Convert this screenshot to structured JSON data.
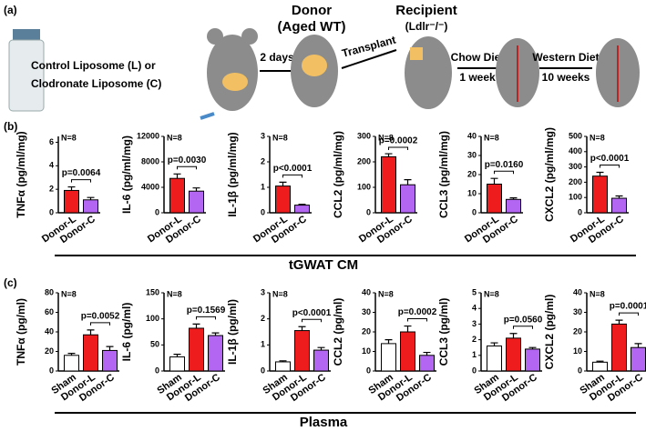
{
  "schematic": {
    "panel": "(a)",
    "vial_line1": "Control Liposome (L) or",
    "vial_line2": "Clodronate Liposome  (C)",
    "donor": "Donor",
    "donor_sub": "(Aged WT)",
    "step1": "2 days",
    "step2": "Transplant",
    "recipient": "Recipient",
    "recipient_sub": "(Ldlr⁻/⁻)",
    "diet1": "Chow Diet",
    "diet1_time": "1 week",
    "diet2": "Western Diet",
    "diet2_time": "10 weeks"
  },
  "panels": {
    "b": "(b)",
    "c": "(c)",
    "b_section": "tGWAT CM",
    "c_section": "Plasma"
  },
  "chart_data": [
    {
      "type": "bar",
      "y_label": "TNFα (pg/ml/mg)",
      "categories": [
        "Donor-L",
        "Donor-C"
      ],
      "values": [
        1.9,
        1.1
      ],
      "errors": [
        0.3,
        0.2
      ],
      "colors": [
        "#ee1c1c",
        "#b366f2"
      ],
      "ylim": [
        0,
        6.5
      ],
      "yticks": [
        0,
        2,
        4,
        6
      ],
      "n_label": "N=8",
      "p_label": "p=0.0064"
    },
    {
      "type": "bar",
      "y_label": "IL-6 (pg/ml/mg)",
      "categories": [
        "Donor-L",
        "Donor-C"
      ],
      "values": [
        5400,
        3400
      ],
      "errors": [
        700,
        500
      ],
      "colors": [
        "#ee1c1c",
        "#b366f2"
      ],
      "ylim": [
        0,
        12000
      ],
      "yticks": [
        0,
        4000,
        8000,
        12000
      ],
      "n_label": "N=8",
      "p_label": "p=0.0030"
    },
    {
      "type": "bar",
      "y_label": "IL-1β (pg/ml/mg)",
      "categories": [
        "Donor-L",
        "Donor-C"
      ],
      "values": [
        1.05,
        0.3
      ],
      "errors": [
        0.15,
        0.03
      ],
      "colors": [
        "#ee1c1c",
        "#b366f2"
      ],
      "ylim": [
        0,
        3
      ],
      "yticks": [
        0,
        1,
        2,
        3
      ],
      "n_label": "N=8",
      "p_label": "p<0.0001"
    },
    {
      "type": "bar",
      "y_label": "CCL2 (pg/ml/mg)",
      "categories": [
        "Donor-L",
        "Donor-C"
      ],
      "values": [
        220,
        110
      ],
      "errors": [
        12,
        20
      ],
      "colors": [
        "#ee1c1c",
        "#b366f2"
      ],
      "ylim": [
        0,
        300
      ],
      "yticks": [
        0,
        100,
        200,
        300
      ],
      "n_label": "N=8",
      "p_label": "p=0.0002"
    },
    {
      "type": "bar",
      "y_label": "CCL3 (pg/ml/mg)",
      "categories": [
        "Donor-L",
        "Donor-C"
      ],
      "values": [
        15,
        7
      ],
      "errors": [
        3,
        0.8
      ],
      "colors": [
        "#ee1c1c",
        "#b366f2"
      ],
      "ylim": [
        0,
        40
      ],
      "yticks": [
        0,
        10,
        20,
        30,
        40
      ],
      "n_label": "N=8",
      "p_label": "p=0.0160"
    },
    {
      "type": "bar",
      "y_label": "CXCL2 (pg/ml/mg)",
      "categories": [
        "Donor-L",
        "Donor-C"
      ],
      "values": [
        240,
        95
      ],
      "errors": [
        25,
        15
      ],
      "colors": [
        "#ee1c1c",
        "#b366f2"
      ],
      "ylim": [
        0,
        500
      ],
      "yticks": [
        0,
        100,
        200,
        300,
        400,
        500
      ],
      "n_label": "N=8",
      "p_label": "p<0.0001"
    },
    {
      "type": "bar",
      "y_label": "TNFα (pg/ml)",
      "categories": [
        "Sham",
        "Donor-L",
        "Donor-C"
      ],
      "values": [
        16,
        37,
        21
      ],
      "errors": [
        2,
        5,
        4
      ],
      "colors": [
        "#ffffff",
        "#ee1c1c",
        "#b366f2"
      ],
      "ylim": [
        0,
        80
      ],
      "yticks": [
        0,
        20,
        40,
        60,
        80
      ],
      "n_label": "N=8",
      "p_label": "p=0.0052"
    },
    {
      "type": "bar",
      "y_label": "IL-6 (pg/ml)",
      "categories": [
        "Sham",
        "Donor-L",
        "Donor-C"
      ],
      "values": [
        27,
        82,
        68
      ],
      "errors": [
        5,
        8,
        5
      ],
      "colors": [
        "#ffffff",
        "#ee1c1c",
        "#b366f2"
      ],
      "ylim": [
        0,
        150
      ],
      "yticks": [
        0,
        50,
        100,
        150
      ],
      "n_label": "N=8",
      "p_label": "p=0.1569"
    },
    {
      "type": "bar",
      "y_label": "IL-1β (pg/ml)",
      "categories": [
        "Sham",
        "Donor-L",
        "Donor-C"
      ],
      "values": [
        0.35,
        1.55,
        0.8
      ],
      "errors": [
        0.04,
        0.15,
        0.1
      ],
      "colors": [
        "#ffffff",
        "#ee1c1c",
        "#b366f2"
      ],
      "ylim": [
        0,
        3
      ],
      "yticks": [
        0,
        1,
        2,
        3
      ],
      "n_label": "N=8",
      "p_label": "p<0.0001"
    },
    {
      "type": "bar",
      "y_label": "CCL2 (pg/ml)",
      "categories": [
        "Sham",
        "Donor-L",
        "Donor-C"
      ],
      "values": [
        14,
        20,
        8
      ],
      "errors": [
        2,
        3,
        1.5
      ],
      "colors": [
        "#ffffff",
        "#ee1c1c",
        "#b366f2"
      ],
      "ylim": [
        0,
        40
      ],
      "yticks": [
        0,
        10,
        20,
        30,
        40
      ],
      "n_label": "N=8",
      "p_label": "p=0.0002"
    },
    {
      "type": "bar",
      "y_label": "CCL3 (pg/ml)",
      "categories": [
        "Sham",
        "Donor-L",
        "Donor-C"
      ],
      "values": [
        1.6,
        2.1,
        1.4
      ],
      "errors": [
        0.2,
        0.3,
        0.1
      ],
      "colors": [
        "#ffffff",
        "#ee1c1c",
        "#b366f2"
      ],
      "ylim": [
        0,
        5
      ],
      "yticks": [
        0,
        1,
        2,
        3,
        4,
        5
      ],
      "n_label": "N=8",
      "p_label": "p=0.0560"
    },
    {
      "type": "bar",
      "y_label": "CXCL2 (pg/ml)",
      "categories": [
        "Sham",
        "Donor-L",
        "Donor-C"
      ],
      "values": [
        4.5,
        24,
        12
      ],
      "errors": [
        0.5,
        2,
        2
      ],
      "colors": [
        "#ffffff",
        "#ee1c1c",
        "#b366f2"
      ],
      "ylim": [
        0,
        40
      ],
      "yticks": [
        0,
        10,
        20,
        30,
        40
      ],
      "n_label": "N=8",
      "p_label": "p=0.0001"
    }
  ]
}
